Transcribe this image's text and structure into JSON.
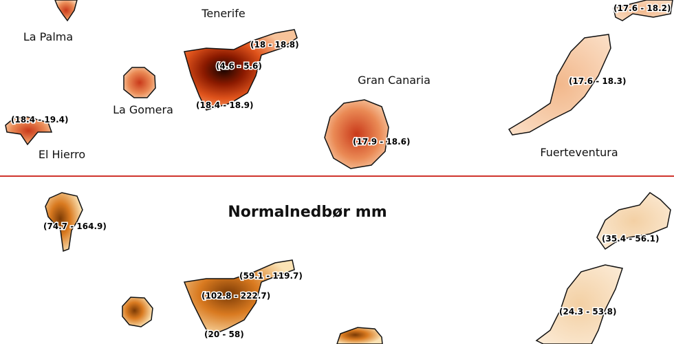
{
  "top_panel": {
    "islands": [
      "La Palma",
      "Tenerife",
      "La Gomera",
      "El Hierro",
      "Gran Canaria",
      "Fuerteventura"
    ],
    "ranges": [
      "(18 - 18.8)",
      "(4.6 - 5.6)",
      "(18.4 - 18.9)",
      "(18.4 - 19.4)",
      "(17.9 - 18.6)",
      "(17.6 - 18.2)",
      "(17.6 - 18.3)"
    ]
  },
  "bottom_panel": {
    "title": "Normalnedbør mm",
    "ranges": [
      "(74.7 - 164.9)",
      "(59.1 - 119.7)",
      "(102.8 - 222.7)",
      "(20 - 58)",
      "(35.4 - 56.1)",
      "(24.3 - 53.8)"
    ]
  }
}
